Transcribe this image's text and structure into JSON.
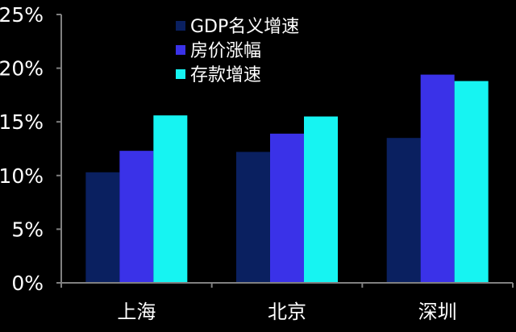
{
  "chart_data": {
    "type": "bar",
    "categories": [
      "上海",
      "北京",
      "深圳"
    ],
    "series": [
      {
        "name": "GDP名义增速",
        "values": [
          10.3,
          12.2,
          13.5
        ],
        "color": "#0a2060"
      },
      {
        "name": "房价涨幅",
        "values": [
          12.3,
          13.9,
          19.4
        ],
        "color": "#3a32e8"
      },
      {
        "name": "存款增速",
        "values": [
          15.6,
          15.5,
          18.8
        ],
        "color": "#16f4f2"
      }
    ],
    "ylim": [
      0,
      25
    ],
    "yticks": [
      "0%",
      "5%",
      "10%",
      "15%",
      "20%",
      "25%"
    ],
    "ytick_values": [
      0,
      5,
      10,
      15,
      20,
      25
    ],
    "grid": false,
    "legend_position": "top-center",
    "colors": {
      "background": "#000000",
      "axis": "#808080",
      "text": "#ffffff"
    }
  }
}
